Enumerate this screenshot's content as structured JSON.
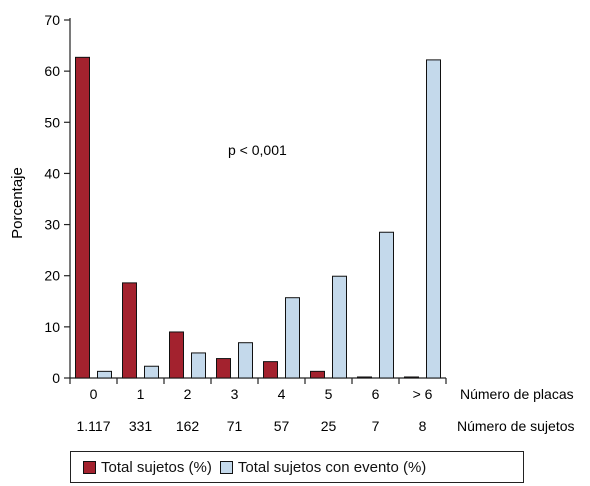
{
  "chart_data": {
    "type": "bar",
    "categories": [
      "0",
      "1",
      "2",
      "3",
      "4",
      "5",
      "6",
      "> 6"
    ],
    "secondary_labels": [
      "1.117",
      "331",
      "162",
      "71",
      "57",
      "25",
      "7",
      "8"
    ],
    "xlabel": "Número de placas",
    "secondary_xlabel": "Número de sujetos",
    "ylabel": "Porcentaje",
    "ylim": [
      0,
      70
    ],
    "yticks": [
      0,
      10,
      20,
      30,
      40,
      50,
      60,
      70
    ],
    "annotation": "p < 0,001",
    "series": [
      {
        "name": "Total sujetos (%)",
        "color": "#a3222e",
        "values": [
          62.7,
          18.6,
          9.0,
          3.8,
          3.2,
          1.3,
          0.2,
          0.2
        ]
      },
      {
        "name": "Total sujetos con evento (%)",
        "color": "#c4d9eb",
        "values": [
          1.3,
          2.3,
          4.9,
          6.9,
          15.7,
          19.9,
          28.5,
          62.2
        ]
      }
    ]
  }
}
